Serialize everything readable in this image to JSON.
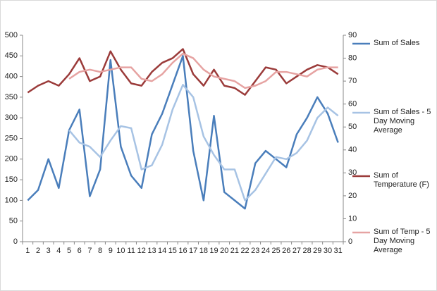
{
  "chart_data": {
    "type": "line",
    "categories": [
      "1",
      "2",
      "3",
      "4",
      "5",
      "6",
      "7",
      "8",
      "9",
      "10",
      "11",
      "12",
      "13",
      "14",
      "15",
      "16",
      "17",
      "18",
      "19",
      "20",
      "21",
      "22",
      "23",
      "24",
      "25",
      "26",
      "27",
      "28",
      "29",
      "30",
      "31"
    ],
    "ylim": [
      0,
      500
    ],
    "yticks": [
      0,
      50,
      100,
      150,
      200,
      250,
      300,
      350,
      400,
      450,
      500
    ],
    "y2lim": [
      0,
      90
    ],
    "y2ticks": [
      0,
      10,
      20,
      30,
      40,
      50,
      60,
      70,
      80,
      90
    ],
    "grid": false,
    "series": [
      {
        "name": "Sum of Sales",
        "color": "#4a7ebb",
        "values": [
          100,
          125,
          200,
          130,
          270,
          320,
          110,
          175,
          440,
          230,
          160,
          130,
          260,
          310,
          380,
          450,
          220,
          100,
          305,
          120,
          100,
          80,
          190,
          220,
          200,
          180,
          260,
          300,
          350,
          310,
          240
        ]
      },
      {
        "name": "Sum of Sales - 5 Day Moving Average",
        "color": "#a7c3e4",
        "values": [
          null,
          null,
          null,
          null,
          270,
          240,
          230,
          205,
          245,
          280,
          275,
          175,
          185,
          235,
          320,
          380,
          350,
          255,
          210,
          175,
          175,
          100,
          125,
          165,
          205,
          200,
          215,
          245,
          300,
          325,
          305
        ]
      },
      {
        "name": "Sum of Temperature (F)",
        "color": "#9b3b3a",
        "axis": "y2",
        "values": [
          65,
          68,
          70,
          68,
          73,
          80,
          70,
          72,
          83,
          75,
          69,
          68,
          74,
          78,
          80,
          84,
          73,
          68,
          75,
          68,
          67,
          64,
          70,
          76,
          75,
          69,
          72,
          75,
          77,
          76,
          73
        ]
      },
      {
        "name": "Sum of Temp - 5 Day Moving Average",
        "color": "#e6a3a2",
        "axis": "y2",
        "values": [
          null,
          null,
          null,
          null,
          71,
          74,
          75,
          74,
          75,
          76,
          76,
          71,
          70,
          73,
          78,
          82,
          80,
          75,
          72,
          71,
          70,
          67,
          68,
          70,
          74,
          74,
          73,
          72,
          75,
          76,
          76
        ]
      }
    ]
  }
}
